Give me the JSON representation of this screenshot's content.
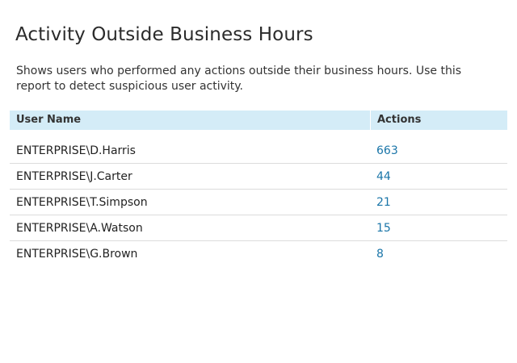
{
  "report": {
    "title": "Activity Outside Business Hours",
    "description": "Shows users who performed any actions outside their business hours. Use this report to detect suspicious user activity."
  },
  "table": {
    "columns": [
      "User Name",
      "Actions"
    ],
    "rows": [
      {
        "user": "ENTERPRISE\\D.Harris",
        "actions": "663"
      },
      {
        "user": "ENTERPRISE\\J.Carter",
        "actions": "44"
      },
      {
        "user": "ENTERPRISE\\T.Simpson",
        "actions": "21"
      },
      {
        "user": "ENTERPRISE\\A.Watson",
        "actions": "15"
      },
      {
        "user": "ENTERPRISE\\G.Brown",
        "actions": "8"
      }
    ]
  },
  "colors": {
    "header_background": "#d4ecf7",
    "link": "#1a75a8",
    "row_divider": "#dcdcdc"
  }
}
